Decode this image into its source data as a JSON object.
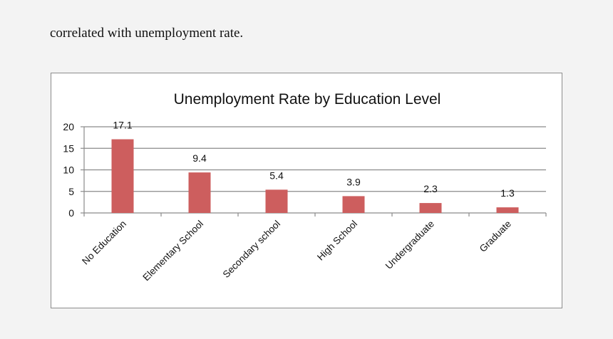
{
  "intro": {
    "text": "correlated with unemployment rate."
  },
  "colors": {
    "bar": "#cd5e5e",
    "grid": "#8a8a8a",
    "axis": "#8a8a8a",
    "background": "#f3f3f3"
  },
  "chart_data": {
    "type": "bar",
    "title": "Unemployment Rate by Education Level",
    "categories": [
      "No Education",
      "Elementary School",
      "Secondary school",
      "High School",
      "Undergraduate",
      "Graduate"
    ],
    "values": [
      17.1,
      9.4,
      5.4,
      3.9,
      2.3,
      1.3
    ],
    "data_labels": [
      "17.1",
      "9.4",
      "5.4",
      "3.9",
      "2.3",
      "1.3"
    ],
    "xlabel": "",
    "ylabel": "",
    "ylim": [
      0,
      20
    ],
    "yticks": [
      0,
      5,
      10,
      15,
      20
    ],
    "grid": true,
    "legend": "none"
  }
}
